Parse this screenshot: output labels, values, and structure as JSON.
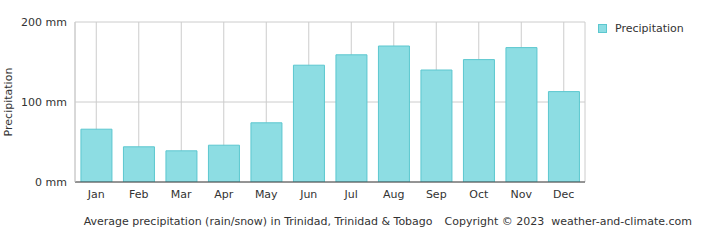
{
  "chart_data": {
    "type": "bar",
    "title": "Average precipitation (rain/snow) in Trinidad, Trinidad & Tobago",
    "annotations": [
      "Copyright © 2023  weather-and-climate.com"
    ],
    "y_label": "Precipitation",
    "categories": [
      "Jan",
      "Feb",
      "Mar",
      "Apr",
      "May",
      "Jun",
      "Jul",
      "Aug",
      "Sep",
      "Oct",
      "Nov",
      "Dec"
    ],
    "series": [
      {
        "name": "Precipitation",
        "color": "#8ddde3",
        "values": [
          66,
          44,
          39,
          46,
          74,
          146,
          159,
          170,
          140,
          153,
          168,
          113
        ]
      }
    ],
    "ylim": [
      0,
      200
    ],
    "yticks": [
      {
        "value": 0,
        "label": "0 mm"
      },
      {
        "value": 100,
        "label": "100 mm"
      },
      {
        "value": 200,
        "label": "200 mm"
      }
    ],
    "grid": true,
    "legend": "upper right"
  }
}
